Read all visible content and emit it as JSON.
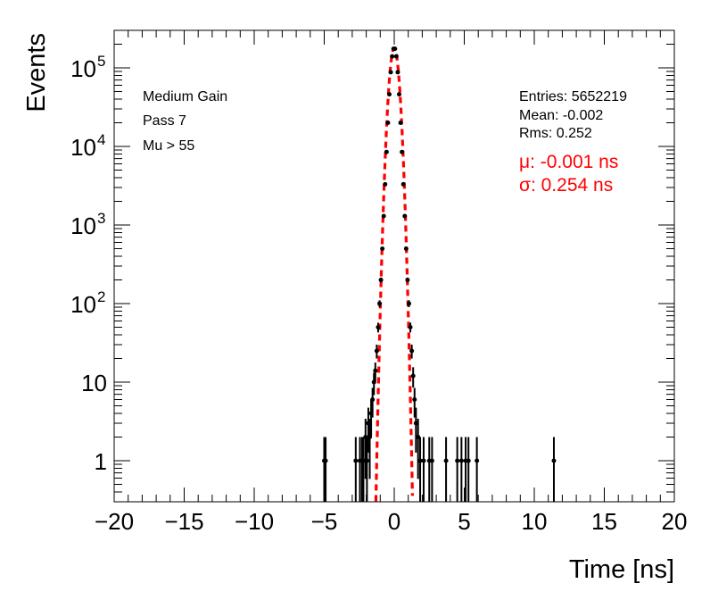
{
  "chart_data": {
    "type": "scatter",
    "title": "",
    "xlabel": "Time [ns]",
    "ylabel": "Events",
    "xlim": [
      -20,
      20
    ],
    "ylim": [
      0.3,
      300000
    ],
    "yscale": "log",
    "grid": false,
    "x_ticks": [
      {
        "value": -20,
        "label": "−20"
      },
      {
        "value": -15,
        "label": "−15"
      },
      {
        "value": -10,
        "label": "−10"
      },
      {
        "value": -5,
        "label": "−5"
      },
      {
        "value": 0,
        "label": "0"
      },
      {
        "value": 5,
        "label": "5"
      },
      {
        "value": 10,
        "label": "10"
      },
      {
        "value": 15,
        "label": "15"
      },
      {
        "value": 20,
        "label": "20"
      }
    ],
    "y_ticks": [
      {
        "value": 1,
        "base": "1",
        "exp": ""
      },
      {
        "value": 10,
        "base": "10",
        "exp": ""
      },
      {
        "value": 100,
        "base": "10",
        "exp": "2"
      },
      {
        "value": 1000,
        "base": "10",
        "exp": "3"
      },
      {
        "value": 10000,
        "base": "10",
        "exp": "4"
      },
      {
        "value": 100000,
        "base": "10",
        "exp": "5"
      }
    ],
    "annotations": {
      "left": [
        "Medium Gain",
        "Pass 7",
        "Mu > 55"
      ],
      "stats": [
        "Entries: 5652219",
        "Mean: -0.002",
        "Rms: 0.252"
      ],
      "fit": [
        "μ: -0.001 ns",
        "σ: 0.254 ns"
      ]
    },
    "series": [
      {
        "kind": "data",
        "color": "#000000",
        "points": [
          {
            "x": -5.0,
            "y": 1
          },
          {
            "x": -4.9,
            "y": 1
          },
          {
            "x": -2.75,
            "y": 1
          },
          {
            "x": -2.45,
            "y": 1
          },
          {
            "x": -2.3,
            "y": 1
          },
          {
            "x": -2.2,
            "y": 1
          },
          {
            "x": -2.05,
            "y": 2
          },
          {
            "x": -1.95,
            "y": 1
          },
          {
            "x": -1.85,
            "y": 3
          },
          {
            "x": -1.75,
            "y": 2
          },
          {
            "x": -1.65,
            "y": 4
          },
          {
            "x": -1.55,
            "y": 6
          },
          {
            "x": -1.45,
            "y": 10
          },
          {
            "x": -1.35,
            "y": 14
          },
          {
            "x": -1.25,
            "y": 25
          },
          {
            "x": -1.15,
            "y": 50
          },
          {
            "x": -1.05,
            "y": 100
          },
          {
            "x": -0.95,
            "y": 200
          },
          {
            "x": -0.85,
            "y": 500
          },
          {
            "x": -0.75,
            "y": 1300
          },
          {
            "x": -0.65,
            "y": 3300
          },
          {
            "x": -0.55,
            "y": 8500
          },
          {
            "x": -0.45,
            "y": 20000
          },
          {
            "x": -0.35,
            "y": 46000
          },
          {
            "x": -0.25,
            "y": 88000
          },
          {
            "x": -0.15,
            "y": 140000
          },
          {
            "x": -0.05,
            "y": 175000
          },
          {
            "x": 0.05,
            "y": 175000
          },
          {
            "x": 0.15,
            "y": 140000
          },
          {
            "x": 0.25,
            "y": 88000
          },
          {
            "x": 0.35,
            "y": 46000
          },
          {
            "x": 0.45,
            "y": 20000
          },
          {
            "x": 0.55,
            "y": 8500
          },
          {
            "x": 0.65,
            "y": 3300
          },
          {
            "x": 0.75,
            "y": 1300
          },
          {
            "x": 0.85,
            "y": 500
          },
          {
            "x": 0.95,
            "y": 200
          },
          {
            "x": 1.05,
            "y": 100
          },
          {
            "x": 1.15,
            "y": 50
          },
          {
            "x": 1.25,
            "y": 25
          },
          {
            "x": 1.35,
            "y": 12
          },
          {
            "x": 1.45,
            "y": 6
          },
          {
            "x": 1.55,
            "y": 3
          },
          {
            "x": 1.7,
            "y": 2
          },
          {
            "x": 1.85,
            "y": 1
          },
          {
            "x": 2.1,
            "y": 1
          },
          {
            "x": 2.5,
            "y": 1
          },
          {
            "x": 2.7,
            "y": 1
          },
          {
            "x": 3.7,
            "y": 1
          },
          {
            "x": 4.5,
            "y": 1
          },
          {
            "x": 4.8,
            "y": 1
          },
          {
            "x": 5.1,
            "y": 1
          },
          {
            "x": 5.3,
            "y": 1
          },
          {
            "x": 5.9,
            "y": 1
          },
          {
            "x": 11.4,
            "y": 1
          }
        ]
      },
      {
        "kind": "gaussian-fit",
        "color": "#ff0000",
        "style": "dashed",
        "mean": -0.001,
        "sigma": 0.254,
        "amplitude": 178000
      }
    ]
  }
}
